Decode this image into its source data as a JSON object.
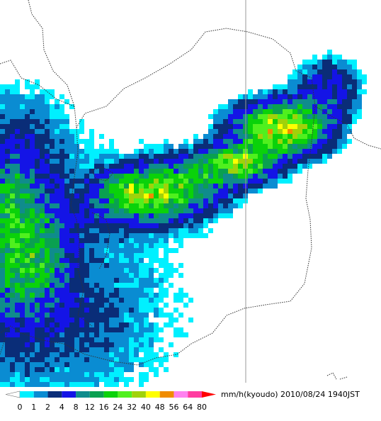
{
  "legend": {
    "unit": "mm/h(kyoudo)",
    "timestamp": "2010/08/24 1940JST",
    "ticks": [
      0,
      1,
      2,
      4,
      8,
      12,
      16,
      24,
      32,
      40,
      48,
      56,
      64,
      80
    ],
    "colors": [
      "#00f0ff",
      "#0a8cd2",
      "#0a2d78",
      "#1414e6",
      "#0f8c8c",
      "#0aa050",
      "#0ad20a",
      "#50f01e",
      "#a0d20a",
      "#ffff00",
      "#f08c00",
      "#ff82f0",
      "#ff3ca0"
    ],
    "under_color": "#ffffff",
    "over_color": "#ff0000"
  }
}
